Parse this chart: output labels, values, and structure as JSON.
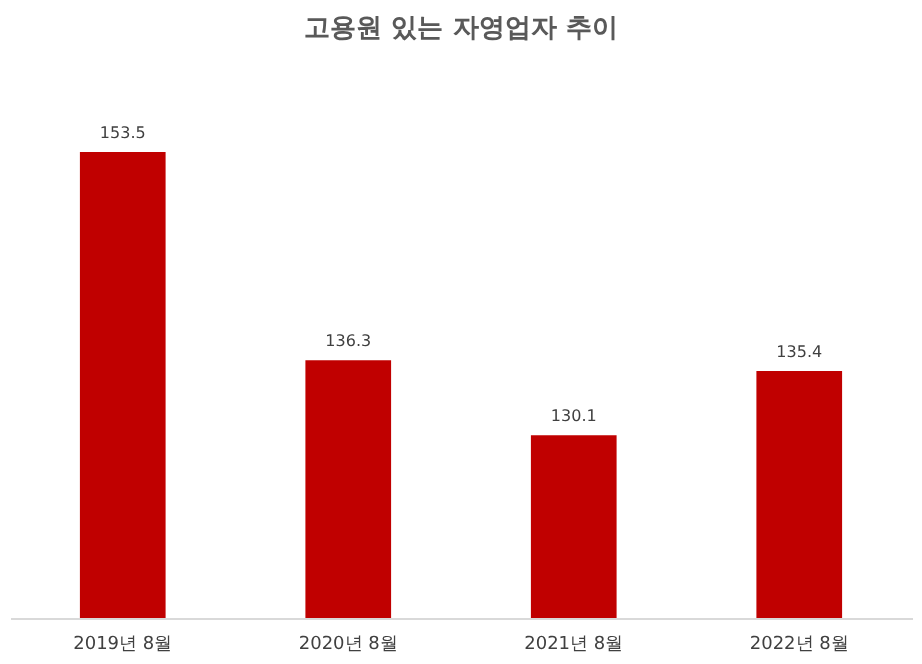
{
  "chart_data": {
    "type": "bar",
    "title": "고용원 있는 자영업자 추이",
    "categories": [
      "2019년 8월",
      "2020년 8월",
      "2021년 8월",
      "2022년 8월"
    ],
    "values": [
      153.5,
      136.3,
      130.1,
      135.4
    ],
    "color": "#c00000",
    "ylim": [
      115,
      153.5
    ],
    "data_labels": true,
    "grid": false,
    "tick_labels": "x"
  }
}
